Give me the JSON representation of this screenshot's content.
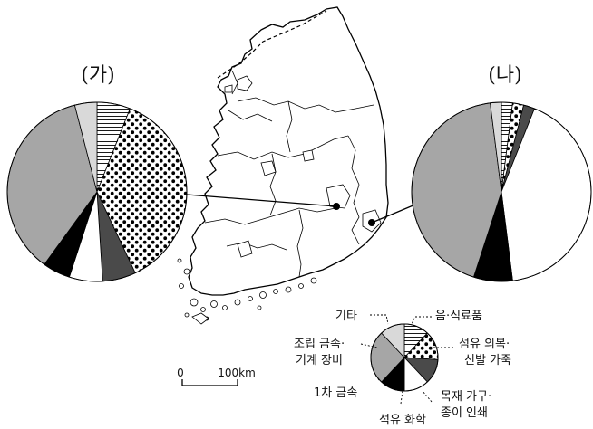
{
  "titles": {
    "left": "(가)",
    "right": "(나)"
  },
  "scale": {
    "zero": "0",
    "distance": "100km"
  },
  "legend": {
    "other": "기타",
    "food": "음·식료품",
    "textile": "섬유 의복·",
    "textile2": "신발 가죽",
    "assembly": "조립 금속·",
    "assembly2": "기계 장비",
    "wood": "목재 가구·",
    "wood2": "종이 인쇄",
    "metal": "1차 금속",
    "petro": "석유 화학"
  },
  "chart_data": [
    {
      "type": "pie",
      "title": "(가)",
      "categories": [
        "음·식료품",
        "섬유 의복·신발 가죽",
        "목재 가구·종이 인쇄",
        "석유 화학",
        "1차 금속",
        "조립 금속·기계 장비",
        "기타"
      ],
      "values": [
        6,
        37,
        6,
        6,
        5,
        36,
        4
      ]
    },
    {
      "type": "pie",
      "title": "(나)",
      "categories": [
        "음·식료품",
        "섬유 의복·신발 가죽",
        "목재 가구·종이 인쇄",
        "석유 화학",
        "1차 금속",
        "조립 금속·기계 장비",
        "기타"
      ],
      "values": [
        2,
        2,
        2,
        42,
        7,
        43,
        2
      ]
    }
  ],
  "legend_order": [
    "음·식료품",
    "섬유 의복·신발 가죽",
    "목재 가구·종이 인쇄",
    "석유 화학",
    "1차 금속",
    "조립 금속·기계 장비",
    "기타"
  ],
  "legend_values": [
    12,
    14,
    12,
    12,
    12,
    26,
    12
  ],
  "colors": {
    "음·식료품": "url(#p-hlines)",
    "섬유 의복·신발 가죽": "url(#p-dots)",
    "목재 가구·종이 인쇄": "#4a4a4a",
    "석유 화학": "#ffffff",
    "1차 금속": "#000000",
    "조립 금속·기계 장비": "#a6a6a6",
    "기타": "#d9d9d9"
  }
}
